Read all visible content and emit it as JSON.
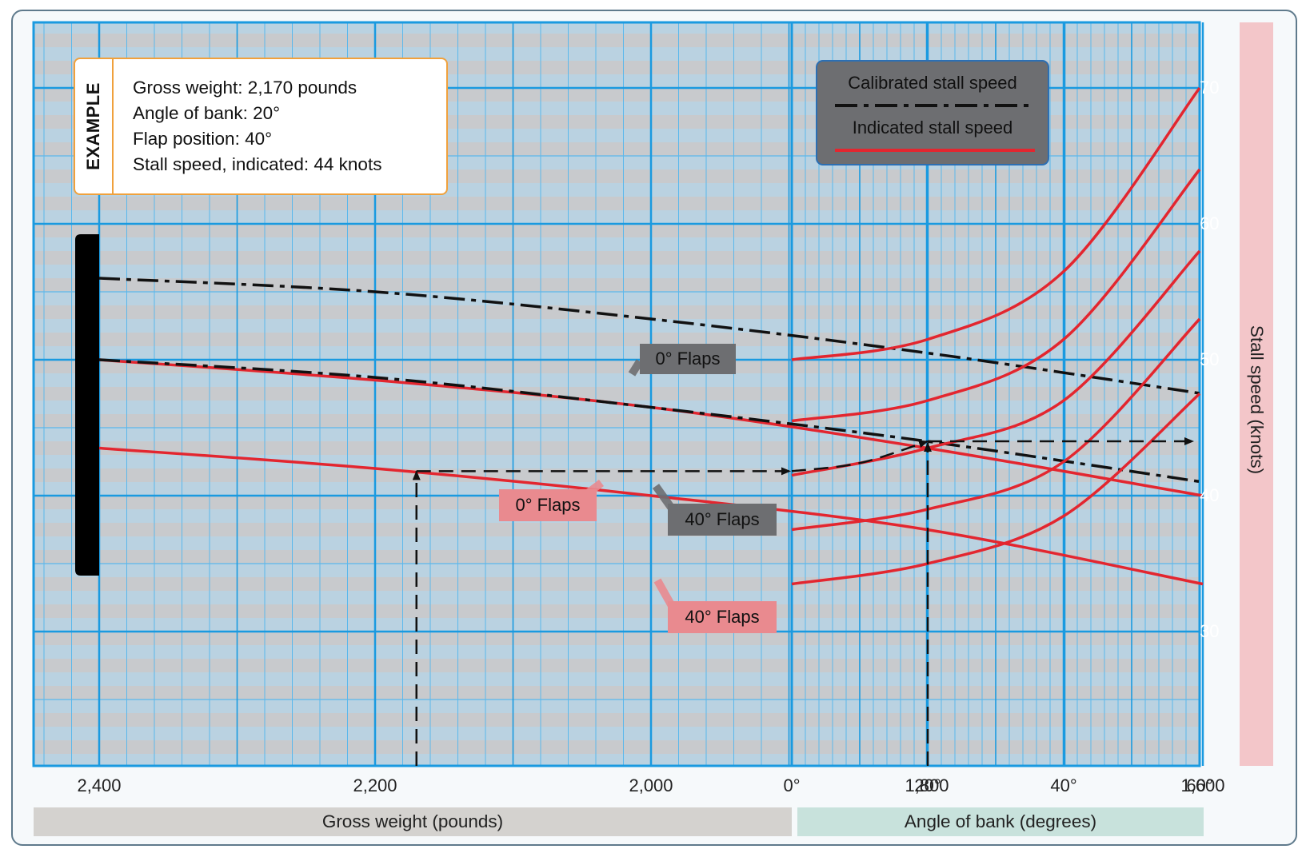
{
  "example": {
    "title": "EXAMPLE",
    "lines": [
      "Gross weight:  2,170 pounds",
      "Angle of bank: 20°",
      "Flap position:   40°",
      "Stall speed, indicated: 44 knots"
    ]
  },
  "legend": {
    "calibrated": "Calibrated stall speed",
    "indicated": "Indicated stall speed"
  },
  "labels": {
    "cal_0": "0° Flaps",
    "cal_40": "40° Flaps",
    "ind_0": "0° Flaps",
    "ind_40": "40° Flaps"
  },
  "colors": {
    "grid_bg": "#c8cacd",
    "grid_major": "#1a9ae0",
    "grid_minor": "#5bb8ec",
    "indicated": "#e3262f",
    "calibrated": "#111111"
  },
  "chart_data": [
    {
      "type": "line",
      "panel": "Gross weight",
      "xlabel": "Gross weight (pounds)",
      "xticks": [
        "2,400",
        "2,200",
        "2,000",
        "1,800",
        "1,600"
      ],
      "xlim": [
        2500,
        1400
      ],
      "ylim": [
        20,
        75
      ],
      "series": [
        {
          "style": "calibrated",
          "flaps": "0° Flaps",
          "x": [
            2400,
            2200,
            2000,
            1800,
            1600
          ],
          "y": [
            56,
            55,
            53,
            50.5,
            47.5
          ]
        },
        {
          "style": "calibrated",
          "flaps": "40° Flaps",
          "x": [
            2400,
            2200,
            2000,
            1800,
            1600
          ],
          "y": [
            50,
            48.7,
            46.5,
            44,
            41
          ]
        },
        {
          "style": "indicated",
          "flaps": "0° Flaps",
          "x": [
            2400,
            2200,
            2000,
            1800,
            1600
          ],
          "y": [
            50,
            48.5,
            46.5,
            43.5,
            40
          ]
        },
        {
          "style": "indicated",
          "flaps": "40° Flaps",
          "x": [
            2400,
            2200,
            2000,
            1800,
            1600
          ],
          "y": [
            43.5,
            42,
            40,
            37.5,
            33.5
          ]
        }
      ]
    },
    {
      "type": "line",
      "panel": "Angle of bank",
      "xlabel": "Angle of bank (degrees)",
      "xticks": [
        "0°",
        "20°",
        "40°",
        "60°"
      ],
      "xlim": [
        0,
        60
      ],
      "ylabel": "Stall speed (knots)",
      "yticks": [
        "30",
        "40",
        "50",
        "60",
        "70"
      ],
      "ylim": [
        20,
        75
      ],
      "series": [
        {
          "x": [
            0,
            20,
            40,
            60
          ],
          "y": [
            50,
            51.5,
            56.5,
            70
          ]
        },
        {
          "x": [
            0,
            20,
            40,
            60
          ],
          "y": [
            45.5,
            47,
            51.5,
            64
          ]
        },
        {
          "x": [
            0,
            20,
            40,
            60
          ],
          "y": [
            41.5,
            43.5,
            47,
            58
          ]
        },
        {
          "x": [
            0,
            20,
            40,
            60
          ],
          "y": [
            37.5,
            39,
            42.5,
            53
          ]
        },
        {
          "x": [
            0,
            20,
            40,
            60
          ],
          "y": [
            33.5,
            35,
            38.5,
            47.5
          ]
        }
      ]
    }
  ],
  "example_path": {
    "weight": 2170,
    "indicated_speed_at_weight": 41.8,
    "bank": 20,
    "result_speed": 44
  }
}
